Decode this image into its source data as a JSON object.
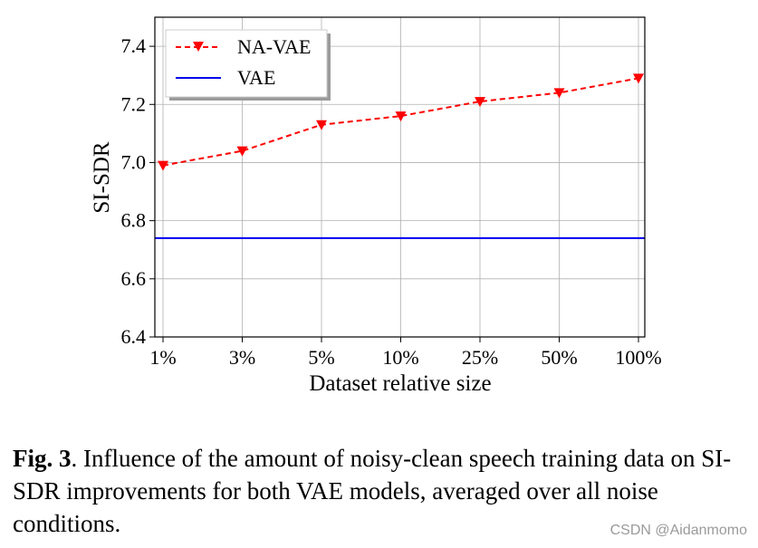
{
  "chart_data": {
    "type": "line",
    "categories": [
      "1%",
      "3%",
      "5%",
      "10%",
      "25%",
      "50%",
      "100%"
    ],
    "series": [
      {
        "name": "NA-VAE",
        "values": [
          6.99,
          7.04,
          7.13,
          7.16,
          7.21,
          7.24,
          7.29
        ],
        "color": "#ff0000",
        "style": "dashed",
        "marker": "triangle-down"
      },
      {
        "name": "VAE",
        "values": [
          6.74,
          6.74,
          6.74,
          6.74,
          6.74,
          6.74,
          6.74
        ],
        "color": "#0000ee",
        "style": "solid",
        "marker": "none"
      }
    ],
    "xlabel": "Dataset relative size",
    "ylabel": "SI-SDR",
    "ylim": [
      6.4,
      7.5
    ],
    "yticks": [
      6.4,
      6.6,
      6.8,
      7.0,
      7.2,
      7.4
    ],
    "ytick_labels": [
      "6.4",
      "6.6",
      "6.8",
      "7.0",
      "7.2",
      "7.4"
    ],
    "grid": true,
    "legend": "top-left"
  },
  "caption": {
    "label": "Fig. 3",
    "text": ". Influence of the amount of noisy-clean speech training data on SI-SDR improvements for both VAE models, averaged over all noise conditions."
  },
  "watermark": "CSDN @Aidanmomo"
}
